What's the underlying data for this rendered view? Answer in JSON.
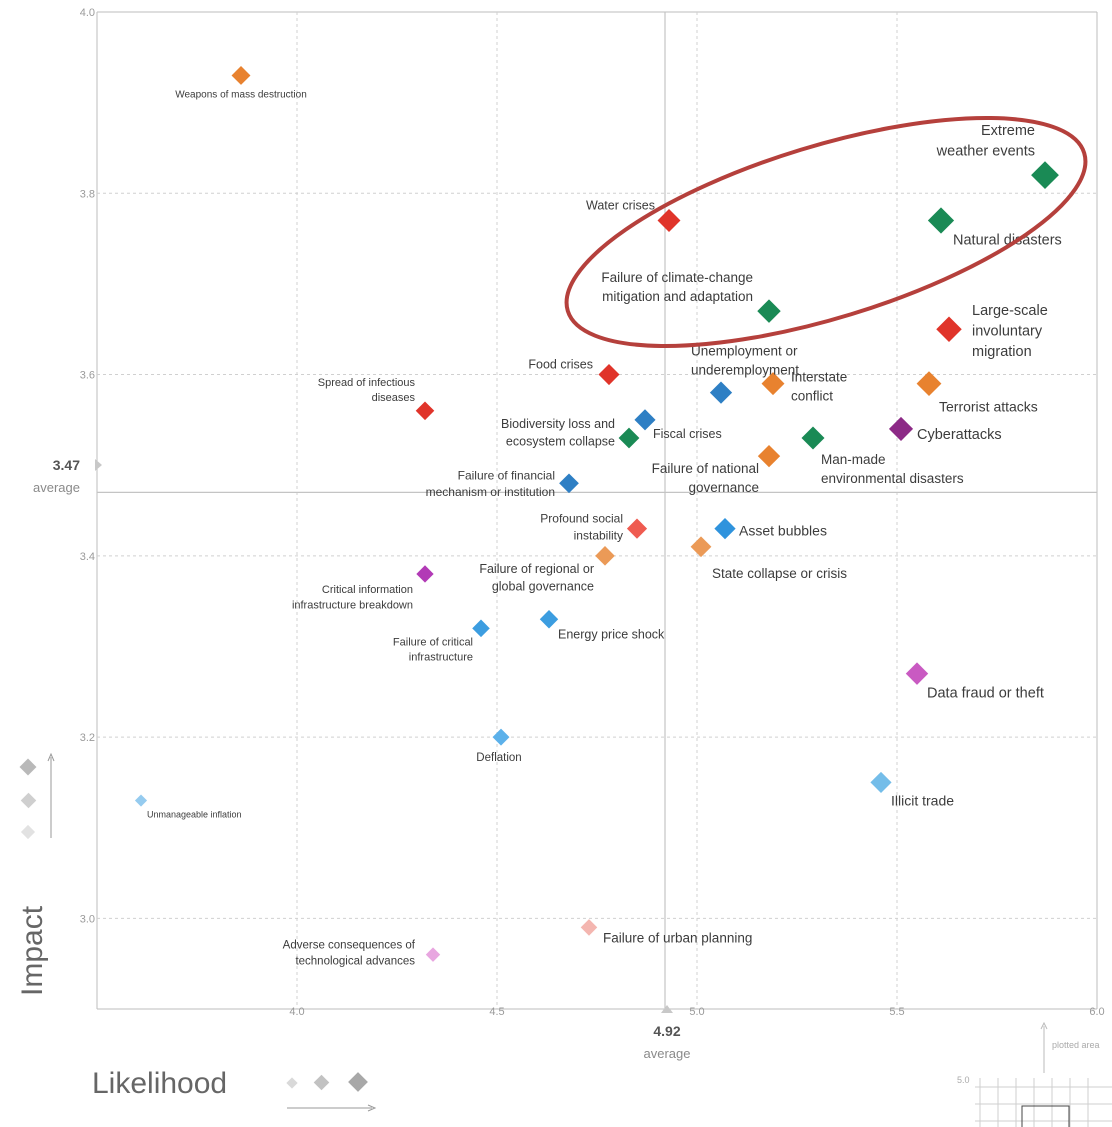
{
  "chart_data": {
    "type": "scatter",
    "xlabel": "Likelihood",
    "ylabel": "Impact",
    "xlim": [
      3.5,
      6.0
    ],
    "ylim": [
      2.9,
      4.0
    ],
    "x_ticks": [
      "4.0",
      "4.5",
      "5.0",
      "5.5",
      "6.0"
    ],
    "y_ticks": [
      "4.0",
      "3.8",
      "3.6",
      "3.4",
      "3.2",
      "3.0"
    ],
    "averages": {
      "x": {
        "value": "4.92",
        "label": "average"
      },
      "y": {
        "value": "3.47",
        "label": "average"
      }
    },
    "highlight": "ellipse around climate-related risks",
    "points": [
      {
        "label": "Weapons of mass destruction",
        "x": 3.86,
        "y": 3.93,
        "color": "#e8822f"
      },
      {
        "label": "Extreme weather events",
        "x": 5.87,
        "y": 3.82,
        "color": "#1a8a55"
      },
      {
        "label": "Water crises",
        "x": 4.93,
        "y": 3.77,
        "color": "#e0342a"
      },
      {
        "label": "Natural disasters",
        "x": 5.61,
        "y": 3.77,
        "color": "#1a8a55"
      },
      {
        "label": "Failure of climate-change mitigation and adaptation",
        "x": 5.18,
        "y": 3.67,
        "color": "#1a8a55"
      },
      {
        "label": "Large-scale involuntary migration",
        "x": 5.63,
        "y": 3.65,
        "color": "#e0342a"
      },
      {
        "label": "Food crises",
        "x": 4.78,
        "y": 3.6,
        "color": "#e0342a"
      },
      {
        "label": "Unemployment or underemployment",
        "x": 5.06,
        "y": 3.58,
        "color": "#2e7fc4"
      },
      {
        "label": "Interstate conflict",
        "x": 5.19,
        "y": 3.59,
        "color": "#e8822f"
      },
      {
        "label": "Terrorist attacks",
        "x": 5.58,
        "y": 3.59,
        "color": "#e8822f"
      },
      {
        "label": "Spread of infectious diseases",
        "x": 4.32,
        "y": 3.56,
        "color": "#e0342a"
      },
      {
        "label": "Fiscal crises",
        "x": 4.87,
        "y": 3.55,
        "color": "#2e7fc4"
      },
      {
        "label": "Biodiversity loss and ecosystem collapse",
        "x": 4.83,
        "y": 3.53,
        "color": "#1a8a55"
      },
      {
        "label": "Cyberattacks",
        "x": 5.51,
        "y": 3.54,
        "color": "#8c2a86"
      },
      {
        "label": "Man-made environmental disasters",
        "x": 5.29,
        "y": 3.53,
        "color": "#1a8a55"
      },
      {
        "label": "Failure of national governance",
        "x": 5.18,
        "y": 3.51,
        "color": "#e8822f"
      },
      {
        "label": "Failure of financial mechanism or institution",
        "x": 4.68,
        "y": 3.48,
        "color": "#2e7fc4"
      },
      {
        "label": "Profound social instability",
        "x": 4.85,
        "y": 3.43,
        "color": "#ef5b50"
      },
      {
        "label": "Asset bubbles",
        "x": 5.07,
        "y": 3.43,
        "color": "#2f93dd"
      },
      {
        "label": "State collapse or crisis",
        "x": 5.01,
        "y": 3.41,
        "color": "#eb9a57"
      },
      {
        "label": "Failure of regional or global governance",
        "x": 4.77,
        "y": 3.4,
        "color": "#eb9a57"
      },
      {
        "label": "Critical information infrastructure breakdown",
        "x": 4.32,
        "y": 3.38,
        "color": "#b23ab6"
      },
      {
        "label": "Energy price shock",
        "x": 4.63,
        "y": 3.33,
        "color": "#3c9de0"
      },
      {
        "label": "Failure of critical infrastructure",
        "x": 4.46,
        "y": 3.32,
        "color": "#3c9de0"
      },
      {
        "label": "Data fraud or theft",
        "x": 5.55,
        "y": 3.27,
        "color": "#c95ac2"
      },
      {
        "label": "Deflation",
        "x": 4.51,
        "y": 3.2,
        "color": "#5cb1ea"
      },
      {
        "label": "Illicit trade",
        "x": 5.46,
        "y": 3.15,
        "color": "#74bde9"
      },
      {
        "label": "Unmanageable inflation",
        "x": 3.61,
        "y": 3.13,
        "color": "#95cbef"
      },
      {
        "label": "Failure of urban planning",
        "x": 4.73,
        "y": 2.99,
        "color": "#f4b6b0"
      },
      {
        "label": "Adverse consequences of technological advances",
        "x": 4.34,
        "y": 2.96,
        "color": "#e8a6e0"
      }
    ]
  },
  "mini_chart": {
    "top_label": "plotted area",
    "tick": "5.0"
  }
}
